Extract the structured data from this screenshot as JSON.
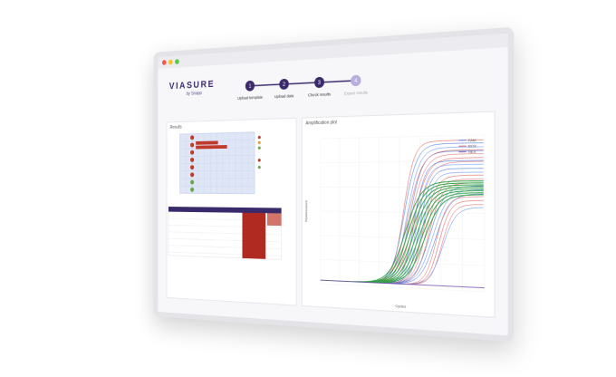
{
  "app": {
    "logo": "VIASURE",
    "logo_sub": "by Snapp"
  },
  "steps": [
    {
      "number": "1",
      "label": "Upload template"
    },
    {
      "number": "2",
      "label": "Upload data"
    },
    {
      "number": "3",
      "label": "Check results"
    },
    {
      "number": "4",
      "label": "Export results"
    }
  ],
  "results": {
    "title": "Results"
  },
  "plot": {
    "title": "Amplification plot",
    "x_label": "Cycles",
    "y_label": "Fluorescence",
    "legend": [
      "FAM",
      "ROX",
      "HEX"
    ]
  }
}
